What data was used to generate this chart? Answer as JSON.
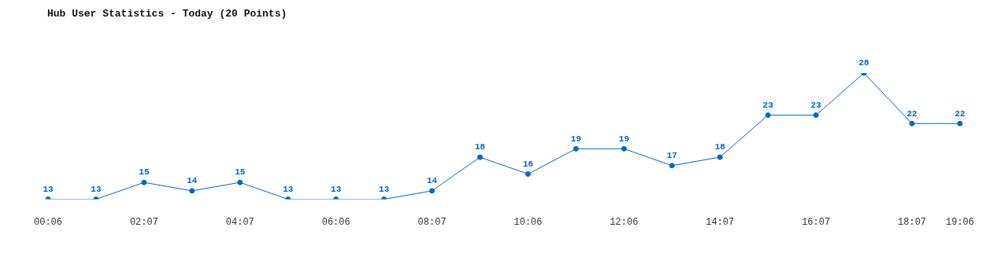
{
  "chart_data": {
    "type": "line",
    "title": "Hub User Statistics - Today (20 Points)",
    "categories": [
      "00:06",
      null,
      "02:07",
      null,
      "04:07",
      null,
      "06:06",
      null,
      "08:07",
      null,
      "10:06",
      null,
      "12:06",
      null,
      "14:07",
      null,
      "16:07",
      null,
      "18:07",
      "19:06"
    ],
    "series": [
      {
        "color": "#0066cc",
        "values": [
          13,
          13,
          15,
          14,
          15,
          13,
          13,
          13,
          14,
          18,
          16,
          19,
          19,
          17,
          18,
          23,
          23,
          28,
          22,
          22
        ]
      }
    ],
    "data_labels": true,
    "marker": "circle",
    "grid": false,
    "legend": false,
    "tick_labels": "x"
  }
}
